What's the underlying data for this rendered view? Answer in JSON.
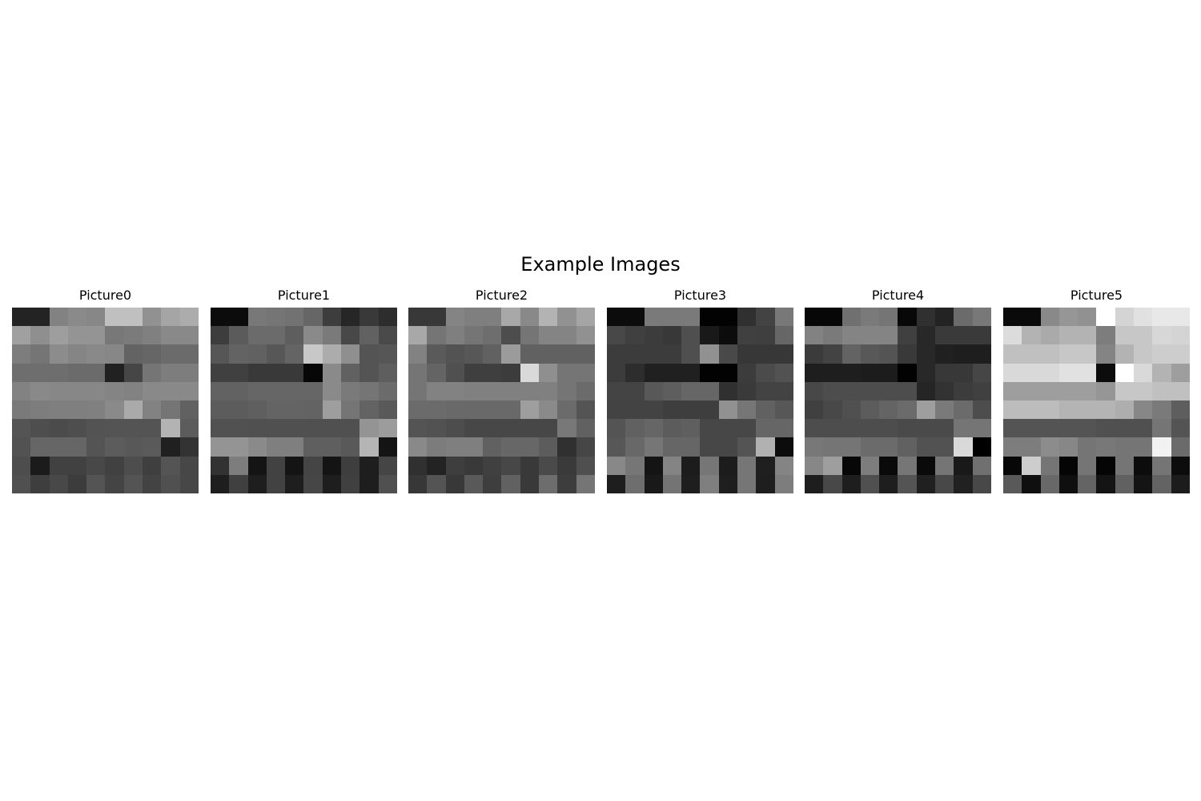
{
  "chart_data": {
    "type": "heatmap",
    "title": "Example Images",
    "colormap": "gray",
    "value_range": [
      0,
      255
    ],
    "panels": [
      {
        "title": "Picture0",
        "pixels": [
          [
            35,
            35,
            130,
            138,
            135,
            192,
            192,
            145,
            165,
            172
          ],
          [
            160,
            143,
            158,
            148,
            148,
            120,
            123,
            128,
            137,
            137
          ],
          [
            125,
            117,
            140,
            133,
            137,
            135,
            99,
            102,
            107,
            107
          ],
          [
            110,
            110,
            110,
            107,
            107,
            33,
            70,
            117,
            125,
            125
          ],
          [
            130,
            137,
            135,
            135,
            135,
            132,
            130,
            137,
            137,
            137
          ],
          [
            122,
            125,
            127,
            127,
            128,
            138,
            170,
            130,
            117,
            97
          ],
          [
            84,
            78,
            75,
            78,
            83,
            84,
            84,
            84,
            179,
            92
          ],
          [
            82,
            102,
            102,
            102,
            84,
            92,
            88,
            90,
            32,
            51
          ],
          [
            77,
            27,
            65,
            65,
            72,
            65,
            77,
            63,
            84,
            71
          ],
          [
            80,
            62,
            72,
            60,
            84,
            68,
            84,
            67,
            80,
            71
          ]
        ]
      },
      {
        "title": "Picture1",
        "pixels": [
          [
            12,
            12,
            120,
            117,
            114,
            102,
            61,
            38,
            57,
            45
          ],
          [
            61,
            91,
            107,
            107,
            94,
            138,
            122,
            72,
            97,
            74
          ],
          [
            86,
            99,
            97,
            87,
            100,
            200,
            172,
            143,
            84,
            86
          ],
          [
            64,
            64,
            57,
            57,
            57,
            7,
            138,
            97,
            84,
            94
          ],
          [
            98,
            98,
            102,
            102,
            102,
            102,
            138,
            122,
            117,
            107
          ],
          [
            92,
            92,
            95,
            100,
            100,
            99,
            158,
            117,
            99,
            89
          ],
          [
            81,
            81,
            80,
            80,
            80,
            80,
            80,
            80,
            148,
            156
          ],
          [
            148,
            148,
            138,
            127,
            127,
            95,
            95,
            89,
            181,
            20
          ],
          [
            50,
            125,
            20,
            66,
            20,
            69,
            20,
            62,
            30,
            69
          ],
          [
            30,
            64,
            30,
            66,
            30,
            70,
            30,
            64,
            30,
            80
          ]
        ]
      },
      {
        "title": "Picture2",
        "pixels": [
          [
            56,
            56,
            132,
            127,
            127,
            168,
            137,
            179,
            145,
            165
          ],
          [
            168,
            117,
            127,
            117,
            110,
            77,
            117,
            132,
            132,
            145
          ],
          [
            130,
            90,
            83,
            87,
            97,
            155,
            97,
            97,
            97,
            97
          ],
          [
            117,
            100,
            80,
            63,
            63,
            60,
            217,
            143,
            117,
            117
          ],
          [
            117,
            130,
            130,
            128,
            128,
            128,
            128,
            128,
            117,
            107
          ],
          [
            107,
            107,
            105,
            105,
            105,
            105,
            158,
            138,
            107,
            84
          ],
          [
            84,
            82,
            77,
            71,
            71,
            71,
            71,
            71,
            120,
            97
          ],
          [
            137,
            124,
            127,
            127,
            97,
            103,
            103,
            92,
            48,
            70
          ],
          [
            48,
            35,
            62,
            57,
            64,
            71,
            57,
            74,
            58,
            79
          ],
          [
            55,
            84,
            56,
            89,
            62,
            97,
            57,
            109,
            61,
            117
          ]
        ]
      },
      {
        "title": "Picture3",
        "pixels": [
          [
            12,
            12,
            122,
            122,
            122,
            2,
            2,
            48,
            67,
            120
          ],
          [
            72,
            64,
            60,
            56,
            79,
            25,
            12,
            64,
            63,
            102
          ],
          [
            60,
            60,
            60,
            60,
            79,
            145,
            73,
            55,
            55,
            55
          ],
          [
            60,
            45,
            32,
            32,
            32,
            2,
            2,
            60,
            75,
            82
          ],
          [
            68,
            68,
            88,
            94,
            102,
            102,
            48,
            58,
            67,
            67
          ],
          [
            67,
            67,
            67,
            62,
            62,
            62,
            145,
            118,
            97,
            87
          ],
          [
            84,
            97,
            102,
            92,
            95,
            71,
            71,
            71,
            102,
            102
          ],
          [
            87,
            104,
            118,
            102,
            102,
            71,
            71,
            84,
            177,
            12
          ],
          [
            136,
            118,
            20,
            132,
            28,
            118,
            28,
            118,
            31,
            132
          ],
          [
            30,
            110,
            25,
            116,
            30,
            127,
            30,
            118,
            30,
            125
          ]
        ]
      },
      {
        "title": "Picture4",
        "pixels": [
          [
            7,
            7,
            112,
            122,
            117,
            8,
            48,
            35,
            107,
            120
          ],
          [
            130,
            122,
            132,
            132,
            132,
            64,
            40,
            58,
            58,
            58
          ],
          [
            59,
            67,
            99,
            88,
            84,
            57,
            40,
            32,
            30,
            30
          ],
          [
            30,
            30,
            30,
            28,
            28,
            2,
            40,
            56,
            56,
            70
          ],
          [
            72,
            77,
            77,
            77,
            77,
            77,
            37,
            50,
            60,
            64
          ],
          [
            64,
            72,
            80,
            92,
            100,
            107,
            158,
            122,
            107,
            77
          ],
          [
            77,
            77,
            77,
            77,
            77,
            74,
            74,
            74,
            117,
            117
          ],
          [
            120,
            117,
            117,
            107,
            107,
            97,
            82,
            82,
            217,
            0
          ],
          [
            135,
            158,
            7,
            125,
            10,
            118,
            10,
            117,
            25,
            112
          ],
          [
            30,
            72,
            30,
            80,
            30,
            84,
            32,
            72,
            33,
            72
          ]
        ]
      },
      {
        "title": "Picture5",
        "pixels": [
          [
            10,
            10,
            137,
            150,
            145,
            255,
            212,
            225,
            232,
            232
          ],
          [
            220,
            179,
            170,
            179,
            179,
            125,
            199,
            199,
            215,
            212
          ],
          [
            192,
            192,
            192,
            199,
            199,
            132,
            179,
            199,
            205,
            205
          ],
          [
            217,
            217,
            217,
            225,
            225,
            12,
            255,
            217,
            179,
            158
          ],
          [
            158,
            158,
            158,
            158,
            158,
            150,
            199,
            199,
            192,
            192
          ],
          [
            188,
            188,
            188,
            180,
            180,
            180,
            174,
            135,
            122,
            94
          ],
          [
            84,
            84,
            84,
            84,
            84,
            80,
            80,
            80,
            117,
            84
          ],
          [
            125,
            125,
            140,
            135,
            117,
            120,
            117,
            117,
            242,
            107
          ],
          [
            7,
            205,
            117,
            5,
            117,
            5,
            117,
            12,
            117,
            12
          ],
          [
            89,
            15,
            104,
            15,
            100,
            20,
            97,
            20,
            99,
            28
          ]
        ]
      }
    ]
  }
}
